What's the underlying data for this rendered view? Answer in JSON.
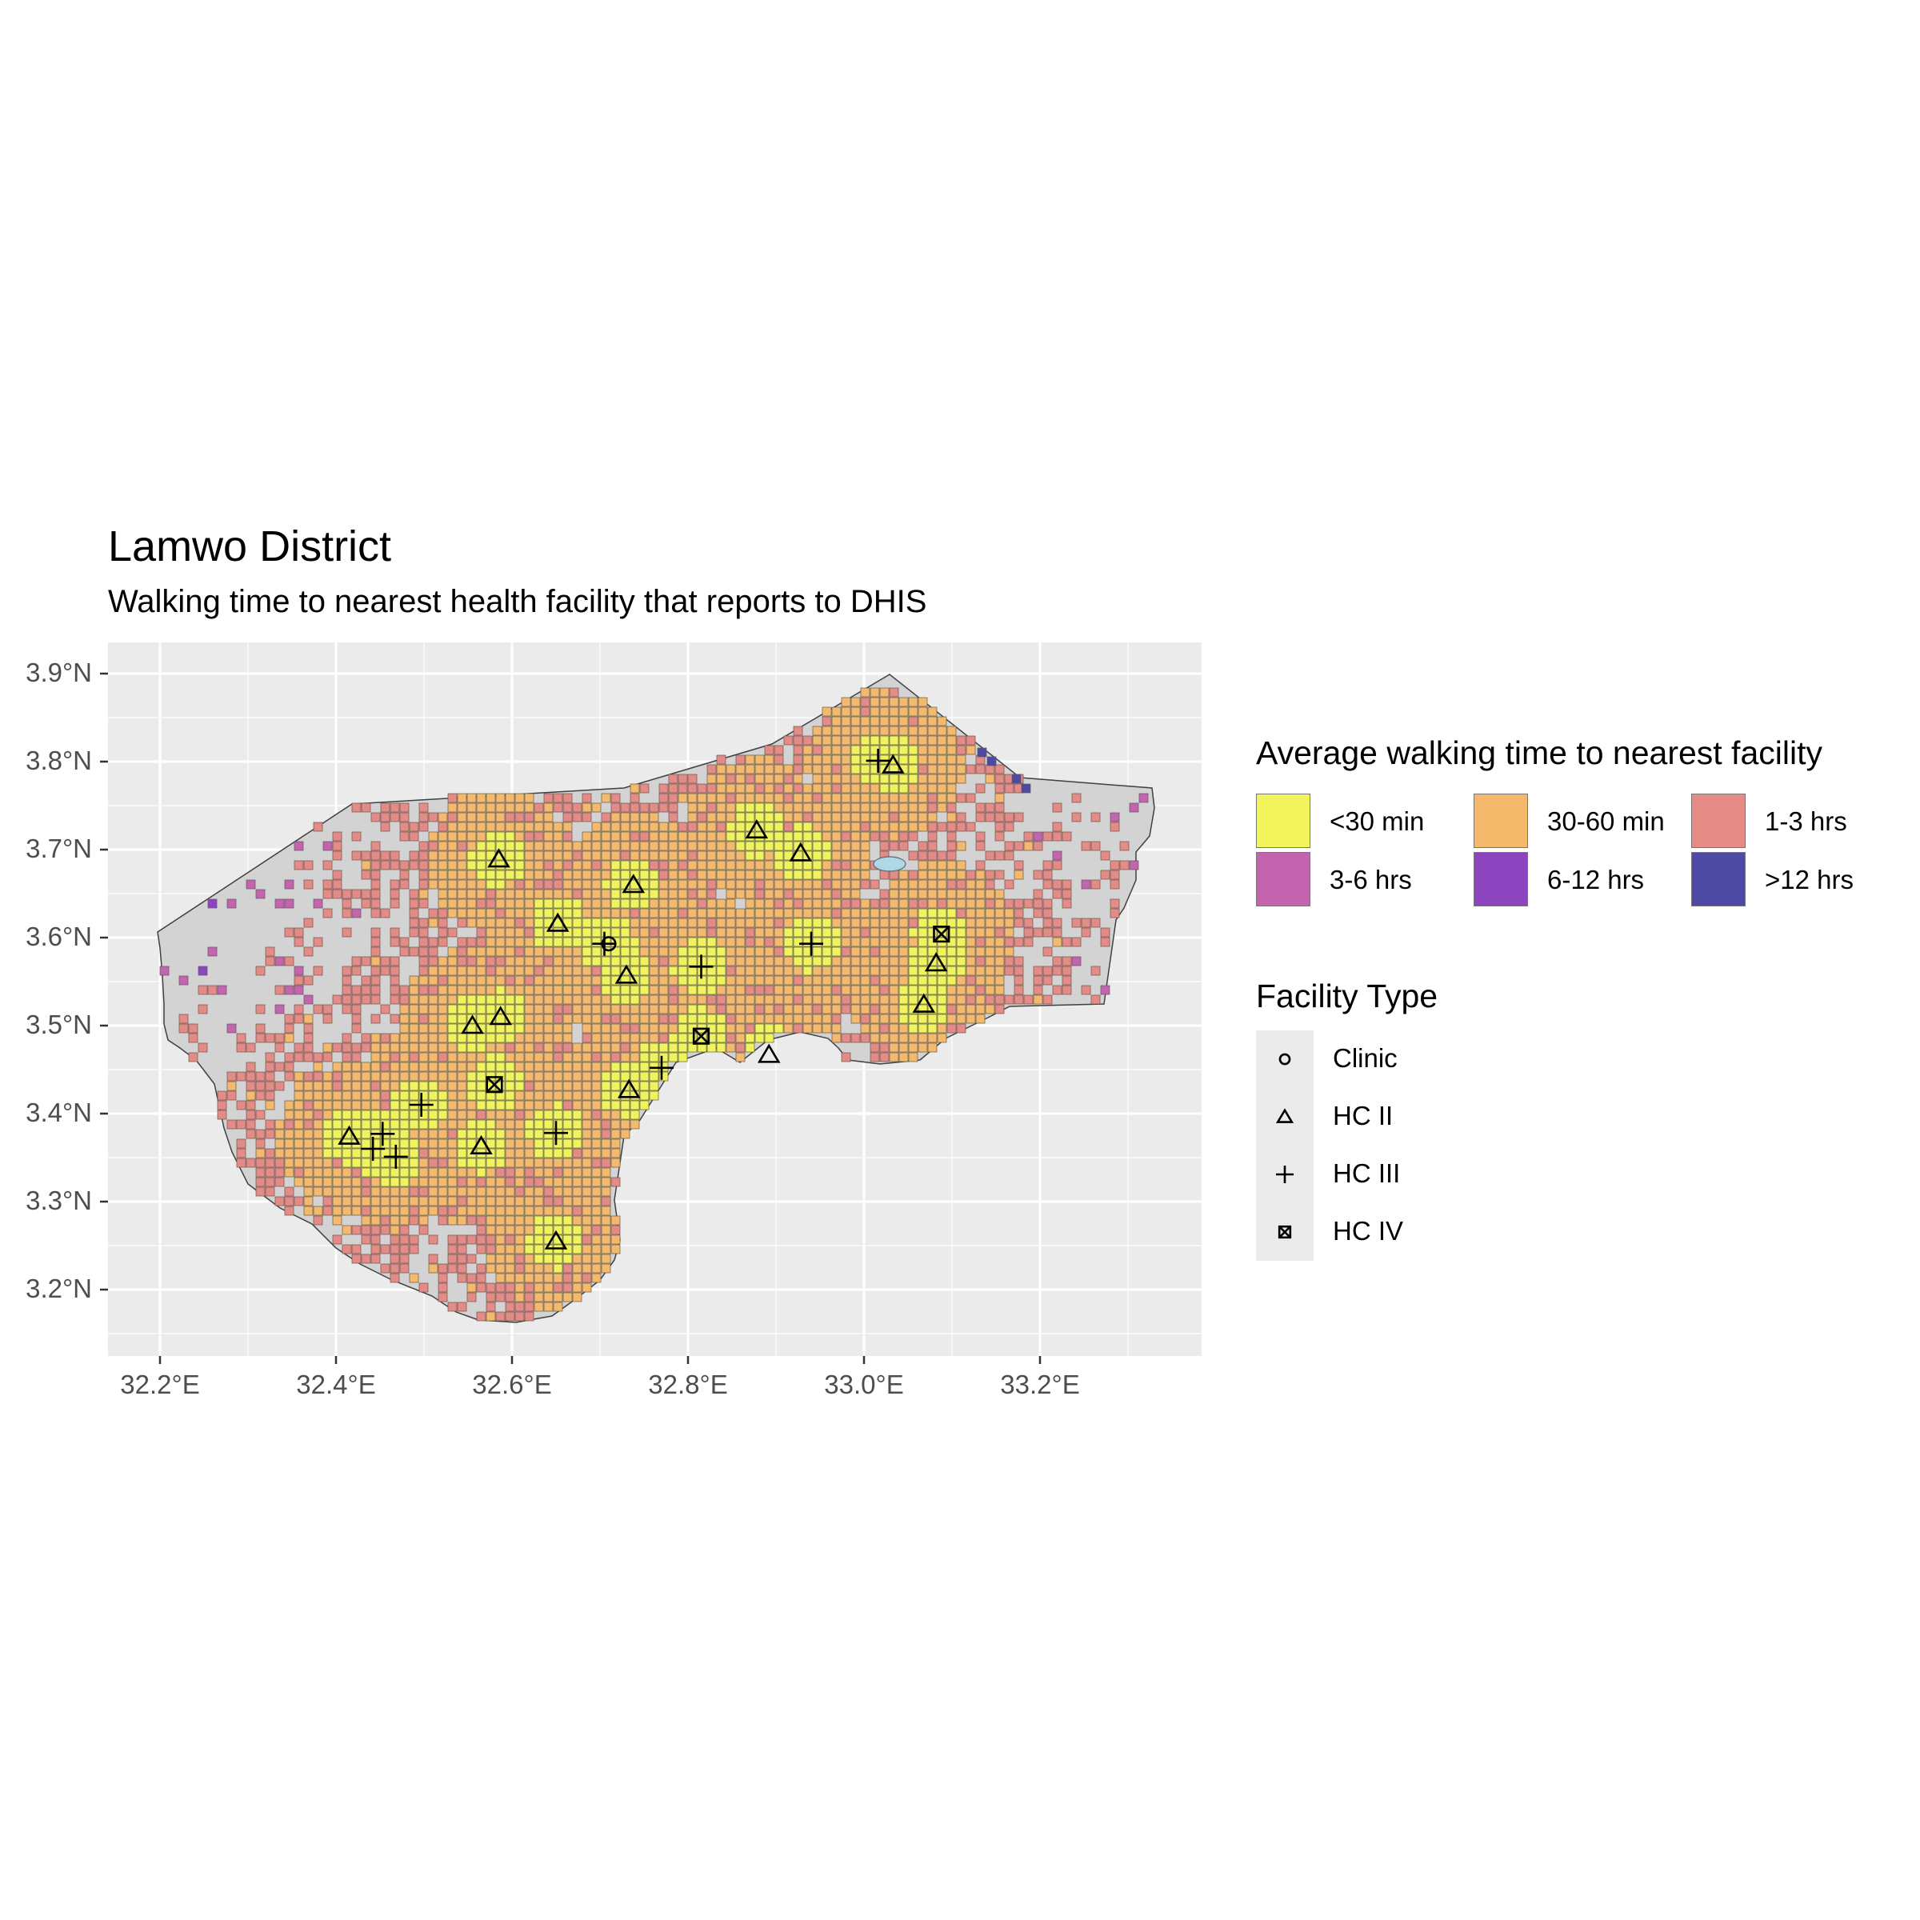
{
  "title": "Lamwo District",
  "subtitle": "Walking time to nearest health facility that reports to DHIS",
  "chart_data": {
    "type": "map",
    "x_axis": {
      "ticks": [
        "32.2°E",
        "32.4°E",
        "32.6°E",
        "32.8°E",
        "33.0°E",
        "33.2°E"
      ],
      "values": [
        32.2,
        32.4,
        32.6,
        32.8,
        33.0,
        33.2
      ],
      "range": [
        32.14,
        33.38
      ]
    },
    "y_axis": {
      "ticks": [
        "3.2°N",
        "3.3°N",
        "3.4°N",
        "3.5°N",
        "3.6°N",
        "3.7°N",
        "3.8°N",
        "3.9°N"
      ],
      "values": [
        3.2,
        3.3,
        3.4,
        3.5,
        3.6,
        3.7,
        3.8,
        3.9
      ],
      "range": [
        3.12,
        3.93
      ]
    },
    "grid": true,
    "panel_background": "#ebebeb",
    "district_fill": "#d3d3d3",
    "water_fill": "#add8e6",
    "walking_time_legend": {
      "title": "Average walking time to nearest facility",
      "categories": [
        {
          "label": "<30 min",
          "color": "#f0f35a"
        },
        {
          "label": "30-60 min",
          "color": "#f5b96c"
        },
        {
          "label": "1-3 hrs",
          "color": "#e68a86"
        },
        {
          "label": "3-6 hrs",
          "color": "#c464ae"
        },
        {
          "label": "6-12 hrs",
          "color": "#8c45bf"
        },
        {
          "label": ">12 hrs",
          "color": "#4e4aa3"
        }
      ]
    },
    "facility_legend": {
      "title": "Facility Type",
      "types": [
        {
          "label": "Clinic",
          "shape": "circle"
        },
        {
          "label": "HC II",
          "shape": "triangle"
        },
        {
          "label": "HC III",
          "shape": "plus"
        },
        {
          "label": "HC IV",
          "shape": "square-cross"
        }
      ]
    },
    "facilities": [
      {
        "type": "Clinic",
        "lon": 32.71,
        "lat": 3.593
      },
      {
        "type": "HC II",
        "lon": 32.585,
        "lat": 3.689
      },
      {
        "type": "HC II",
        "lon": 32.738,
        "lat": 3.66
      },
      {
        "type": "HC II",
        "lon": 32.652,
        "lat": 3.616
      },
      {
        "type": "HC II",
        "lon": 32.73,
        "lat": 3.557
      },
      {
        "type": "HC II",
        "lon": 32.878,
        "lat": 3.722
      },
      {
        "type": "HC II",
        "lon": 32.928,
        "lat": 3.696
      },
      {
        "type": "HC II",
        "lon": 33.033,
        "lat": 3.796
      },
      {
        "type": "HC II",
        "lon": 33.082,
        "lat": 3.571
      },
      {
        "type": "HC II",
        "lon": 33.068,
        "lat": 3.524
      },
      {
        "type": "HC II",
        "lon": 32.555,
        "lat": 3.5
      },
      {
        "type": "HC II",
        "lon": 32.587,
        "lat": 3.51
      },
      {
        "type": "HC II",
        "lon": 32.892,
        "lat": 3.467
      },
      {
        "type": "HC II",
        "lon": 32.733,
        "lat": 3.427
      },
      {
        "type": "HC II",
        "lon": 32.415,
        "lat": 3.374
      },
      {
        "type": "HC II",
        "lon": 32.565,
        "lat": 3.363
      },
      {
        "type": "HC II",
        "lon": 32.65,
        "lat": 3.255
      },
      {
        "type": "HC III",
        "lon": 32.705,
        "lat": 3.593
      },
      {
        "type": "HC III",
        "lon": 32.815,
        "lat": 3.567
      },
      {
        "type": "HC III",
        "lon": 33.016,
        "lat": 3.801
      },
      {
        "type": "HC III",
        "lon": 32.94,
        "lat": 3.593
      },
      {
        "type": "HC III",
        "lon": 32.77,
        "lat": 3.452
      },
      {
        "type": "HC III",
        "lon": 32.497,
        "lat": 3.41
      },
      {
        "type": "HC III",
        "lon": 32.65,
        "lat": 3.378
      },
      {
        "type": "HC III",
        "lon": 32.442,
        "lat": 3.36
      },
      {
        "type": "HC III",
        "lon": 32.453,
        "lat": 3.377
      },
      {
        "type": "HC III",
        "lon": 32.468,
        "lat": 3.351
      },
      {
        "type": "HC IV",
        "lon": 33.088,
        "lat": 3.604
      },
      {
        "type": "HC IV",
        "lon": 32.815,
        "lat": 3.488
      },
      {
        "type": "HC IV",
        "lon": 32.58,
        "lat": 3.433
      }
    ],
    "lake": {
      "lon": 33.03,
      "lat": 3.683
    }
  }
}
